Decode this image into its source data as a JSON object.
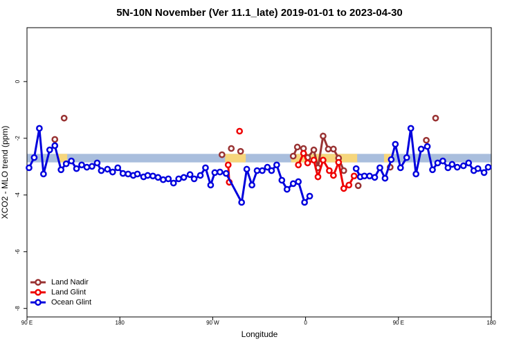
{
  "chart_data": {
    "type": "line",
    "title": "5N-10N November (Ver 11.1_late)   2019-01-01 to 2023-04-30",
    "x_label": "Longitude",
    "y_label": "XCO2 - MLO trend (ppm)",
    "xlim": [
      -270,
      180
    ],
    "xticks": [
      {
        "value": -270,
        "label": "90 E"
      },
      {
        "value": -180,
        "label": "180"
      },
      {
        "value": -90,
        "label": "90 W"
      },
      0,
      {
        "value": 90,
        "label": "90 E"
      },
      180
    ],
    "ylim": [
      -8.3,
      1.9
    ],
    "yticks": [
      0,
      -2,
      -4,
      -6,
      -8
    ],
    "legend": "bottom-left",
    "band": {
      "range": [
        -2.85,
        -2.55
      ],
      "color": "#a9bedd",
      "highlight_color": "#f6d67c",
      "highlights": [
        [
          -240,
          -231
        ],
        [
          -78,
          -58
        ],
        [
          -14,
          50
        ],
        [
          76,
          83
        ]
      ]
    },
    "series": [
      {
        "name": "Land Nadir",
        "color": "#993333",
        "x": [
          -243,
          null,
          -234,
          null,
          -81,
          null,
          -72,
          null,
          -63,
          null,
          -12,
          -8,
          -2,
          2,
          8,
          12,
          17,
          22,
          27,
          32,
          37,
          null,
          51,
          null,
          82,
          null,
          117,
          null,
          126
        ],
        "values": [
          -2.04,
          null,
          -1.29,
          null,
          -2.58,
          null,
          -2.36,
          null,
          -2.46,
          null,
          -2.63,
          -2.31,
          -2.36,
          -2.68,
          -2.41,
          -3.04,
          -1.92,
          -2.38,
          -2.38,
          -2.7,
          -3.14,
          null,
          -3.67,
          null,
          -3.02,
          null,
          -2.07,
          null,
          -1.29
        ]
      },
      {
        "name": "Land Glint",
        "color": "#ee0000",
        "x": [
          -75,
          -74,
          null,
          -64,
          null,
          -7,
          -2,
          2,
          8,
          12,
          17,
          23,
          27,
          32,
          37,
          42,
          47
        ],
        "values": [
          -2.94,
          -3.55,
          null,
          -1.75,
          null,
          -2.94,
          -2.53,
          -2.87,
          -2.77,
          -3.36,
          -2.77,
          -3.14,
          -3.31,
          -2.85,
          -3.77,
          -3.65,
          -3.33
        ]
      },
      {
        "name": "Ocean Glint",
        "color": "#0000dd",
        "x": [
          -268,
          -263,
          -258,
          -254,
          -248,
          -243,
          -237,
          -232,
          -227,
          -222,
          -217,
          -212,
          -207,
          -202,
          -198,
          -192,
          -187,
          -182,
          -177,
          -172,
          -167,
          -163,
          -157,
          -153,
          -148,
          -143,
          -138,
          -133,
          -128,
          -123,
          -118,
          -112,
          -108,
          -102,
          -97,
          -92,
          -88,
          -83,
          -77,
          -62,
          -57,
          -52,
          -47,
          -42,
          -37,
          -33,
          -28,
          -23,
          -18,
          -12,
          -7,
          -1,
          4,
          null,
          49,
          53,
          57,
          62,
          67,
          72,
          77,
          83,
          87,
          92,
          98,
          102,
          107,
          112,
          118,
          123,
          128,
          133,
          138,
          142,
          147,
          153,
          158,
          163,
          167,
          173,
          177
        ],
        "values": [
          -3.04,
          -2.68,
          -1.65,
          -3.26,
          -2.41,
          -2.26,
          -3.11,
          -2.9,
          -2.8,
          -3.07,
          -2.94,
          -3.02,
          -2.99,
          -2.87,
          -3.14,
          -3.09,
          -3.19,
          -3.04,
          -3.24,
          -3.26,
          -3.31,
          -3.26,
          -3.36,
          -3.31,
          -3.33,
          -3.38,
          -3.46,
          -3.43,
          -3.58,
          -3.43,
          -3.38,
          -3.28,
          -3.43,
          -3.31,
          -3.04,
          -3.65,
          -3.21,
          -3.19,
          -3.24,
          -4.26,
          -3.09,
          -3.65,
          -3.14,
          -3.14,
          -3.02,
          -3.14,
          -2.94,
          -3.48,
          -3.8,
          -3.6,
          -3.53,
          -4.26,
          -4.04,
          null,
          -3.07,
          -3.36,
          -3.33,
          -3.33,
          -3.38,
          -3.04,
          -3.41,
          -2.75,
          -2.21,
          -3.04,
          -2.68,
          -1.65,
          -3.26,
          -2.38,
          -2.29,
          -3.11,
          -2.87,
          -2.8,
          -3.04,
          -2.92,
          -3.02,
          -2.97,
          -2.87,
          -3.14,
          -3.07,
          -3.21,
          -3.02
        ]
      }
    ]
  }
}
